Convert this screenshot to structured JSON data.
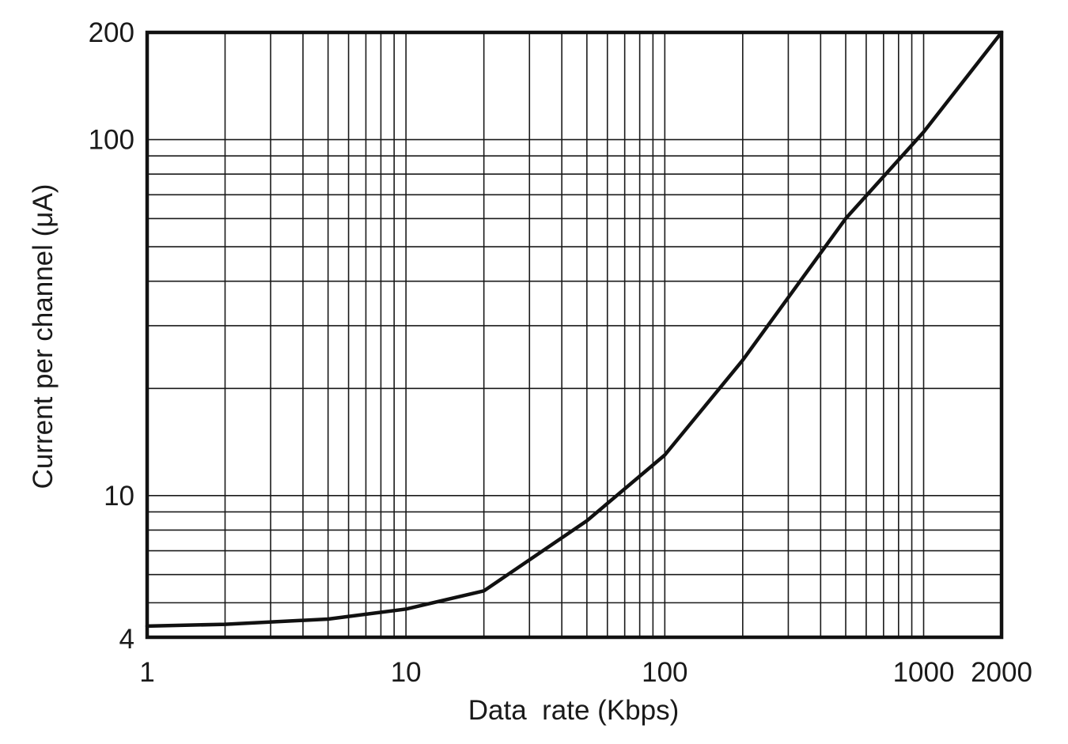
{
  "chart_data": {
    "type": "line",
    "title": "",
    "xlabel": "Data  rate (Kbps)",
    "ylabel": "Current per channel (μA)",
    "x_scale": "log",
    "y_scale": "log",
    "xlim": [
      1,
      2000
    ],
    "ylim": [
      4,
      200
    ],
    "grid": true,
    "x_ticks": [
      1,
      10,
      100,
      1000,
      2000
    ],
    "x_tick_labels": [
      "1",
      "10",
      "100",
      "1000",
      "2000"
    ],
    "y_ticks": [
      4,
      10,
      100,
      200
    ],
    "y_tick_labels": [
      "4",
      "10",
      "100",
      "200"
    ],
    "x_minor_grid": [
      2,
      3,
      4,
      5,
      6,
      7,
      8,
      9,
      20,
      30,
      40,
      50,
      60,
      70,
      80,
      90,
      200,
      300,
      400,
      500,
      600,
      700,
      800,
      900
    ],
    "y_minor_grid": [
      5,
      6,
      7,
      8,
      9,
      20,
      30,
      40,
      50,
      60,
      70,
      80,
      90
    ],
    "series": [
      {
        "x": [
          1,
          2,
          5,
          10,
          20,
          50,
          100,
          200,
          500,
          1000,
          2000
        ],
        "y": [
          4.3,
          4.35,
          4.5,
          4.8,
          5.4,
          8.5,
          13,
          24,
          60,
          105,
          200
        ]
      }
    ]
  }
}
